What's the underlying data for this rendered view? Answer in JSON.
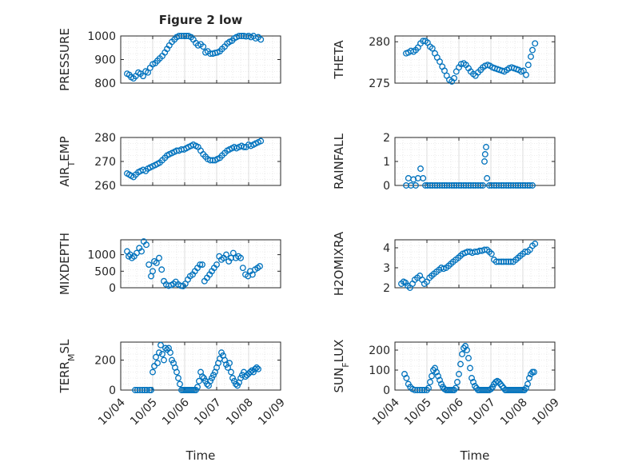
{
  "figure": {
    "title": "Figure 2 low",
    "time_label": "Time",
    "time_ticks": [
      "10/04",
      "10/05",
      "10/06",
      "10/07",
      "10/08",
      "10/09"
    ]
  },
  "colors": {
    "marker": "#0072BD",
    "axis": "#262626",
    "grid": "#d9d9d9"
  },
  "chart_data": [
    {
      "type": "scatter",
      "ylabel": "PRESSURE",
      "ylim": [
        800,
        1000
      ],
      "yticks": [
        800,
        900,
        1000
      ],
      "xlim": [
        0,
        5
      ],
      "grid": true,
      "x": [
        0.2,
        0.27,
        0.33,
        0.4,
        0.47,
        0.55,
        0.62,
        0.7,
        0.78,
        0.85,
        0.92,
        1.0,
        1.08,
        1.15,
        1.22,
        1.3,
        1.38,
        1.45,
        1.52,
        1.6,
        1.68,
        1.75,
        1.82,
        1.9,
        1.98,
        2.05,
        2.12,
        2.2,
        2.27,
        2.35,
        2.42,
        2.5,
        2.58,
        2.65,
        2.72,
        2.8,
        2.88,
        2.95,
        3.02,
        3.1,
        3.17,
        3.25,
        3.33,
        3.4,
        3.48,
        3.55,
        3.62,
        3.7,
        3.78,
        3.85,
        3.92,
        4.0,
        4.07,
        4.15,
        4.22,
        4.3,
        4.38
      ],
      "y": [
        840,
        835,
        825,
        820,
        830,
        845,
        840,
        830,
        850,
        845,
        865,
        880,
        885,
        895,
        905,
        915,
        930,
        945,
        960,
        975,
        985,
        995,
        1000,
        1000,
        1000,
        1000,
        1000,
        995,
        985,
        970,
        960,
        965,
        955,
        930,
        935,
        925,
        925,
        928,
        930,
        935,
        945,
        955,
        968,
        975,
        980,
        990,
        995,
        1000,
        1000,
        1000,
        998,
        1000,
        995,
        1000,
        990,
        995,
        985
      ]
    },
    {
      "type": "scatter",
      "ylabel": "THETA",
      "ylim": [
        275,
        280.7
      ],
      "yticks": [
        275,
        280
      ],
      "xlim": [
        0,
        5
      ],
      "grid": true,
      "x": [
        0.35,
        0.42,
        0.5,
        0.58,
        0.65,
        0.72,
        0.8,
        0.88,
        0.95,
        1.02,
        1.1,
        1.17,
        1.25,
        1.32,
        1.4,
        1.48,
        1.55,
        1.62,
        1.7,
        1.78,
        1.85,
        1.92,
        2.0,
        2.07,
        2.15,
        2.22,
        2.3,
        2.37,
        2.45,
        2.52,
        2.6,
        2.68,
        2.75,
        2.82,
        2.9,
        2.97,
        3.05,
        3.12,
        3.2,
        3.27,
        3.35,
        3.42,
        3.5,
        3.57,
        3.65,
        3.72,
        3.8,
        3.87,
        3.95,
        4.02,
        4.1,
        4.17,
        4.25,
        4.3,
        4.38
      ],
      "y": [
        278.6,
        278.7,
        278.9,
        278.8,
        279.0,
        279.3,
        279.8,
        280.1,
        280.1,
        279.9,
        279.4,
        279.2,
        278.6,
        278.1,
        277.6,
        277.0,
        276.5,
        275.9,
        275.4,
        275.2,
        275.6,
        276.4,
        276.9,
        277.3,
        277.4,
        277.2,
        276.8,
        276.4,
        276.1,
        275.9,
        276.3,
        276.6,
        276.9,
        277.1,
        277.2,
        277.1,
        276.9,
        276.8,
        276.7,
        276.6,
        276.5,
        276.4,
        276.6,
        276.8,
        276.9,
        276.8,
        276.7,
        276.6,
        276.4,
        276.5,
        276.0,
        277.2,
        278.2,
        279.0,
        279.8
      ]
    },
    {
      "type": "scatter",
      "ylabel": "AIR_TEMP",
      "ylim": [
        260,
        280
      ],
      "yticks": [
        260,
        270,
        280
      ],
      "xlim": [
        0,
        5
      ],
      "grid": true,
      "x": [
        0.2,
        0.27,
        0.33,
        0.4,
        0.47,
        0.55,
        0.62,
        0.7,
        0.78,
        0.85,
        0.92,
        1.0,
        1.08,
        1.15,
        1.22,
        1.3,
        1.38,
        1.45,
        1.52,
        1.6,
        1.68,
        1.75,
        1.82,
        1.9,
        1.98,
        2.05,
        2.12,
        2.2,
        2.27,
        2.35,
        2.42,
        2.5,
        2.58,
        2.65,
        2.72,
        2.8,
        2.88,
        2.95,
        3.02,
        3.1,
        3.17,
        3.25,
        3.33,
        3.4,
        3.48,
        3.55,
        3.62,
        3.7,
        3.78,
        3.85,
        3.92,
        4.0,
        4.07,
        4.15,
        4.22,
        4.3,
        4.38
      ],
      "y": [
        265,
        264.5,
        264,
        263.5,
        264.5,
        265.5,
        266,
        266.5,
        266,
        267,
        267.5,
        268,
        268.5,
        269,
        269.5,
        270.5,
        271.5,
        272.5,
        273,
        273.5,
        274,
        274.5,
        274.5,
        275,
        275,
        275.5,
        276,
        276.5,
        277,
        276.5,
        276,
        274.5,
        273,
        272,
        271,
        270.5,
        270.5,
        270.5,
        271,
        271.5,
        272.5,
        273.5,
        274.5,
        275,
        275.5,
        276,
        275.5,
        276,
        276.5,
        276,
        276,
        277,
        276.5,
        277,
        277.5,
        278,
        278.5
      ]
    },
    {
      "type": "scatter",
      "ylabel": "RAINFALL",
      "ylim": [
        0,
        2
      ],
      "yticks": [
        0,
        1,
        2
      ],
      "xlim": [
        0,
        5
      ],
      "grid": true,
      "x": [
        0.35,
        0.42,
        0.5,
        0.58,
        0.65,
        0.72,
        0.8,
        0.88,
        0.95,
        1.02,
        1.1,
        1.17,
        1.25,
        1.32,
        1.4,
        1.48,
        1.55,
        1.62,
        1.7,
        1.78,
        1.85,
        1.92,
        2.0,
        2.07,
        2.15,
        2.22,
        2.3,
        2.37,
        2.45,
        2.52,
        2.6,
        2.68,
        2.75,
        2.8,
        2.82,
        2.85,
        2.88,
        2.95,
        3.02,
        3.1,
        3.17,
        3.25,
        3.33,
        3.4,
        3.48,
        3.55,
        3.62,
        3.7,
        3.78,
        3.85,
        3.92,
        4.0,
        4.07,
        4.15,
        4.22,
        4.3
      ],
      "y": [
        0,
        0.3,
        0,
        0.25,
        0,
        0.3,
        0.7,
        0.3,
        0,
        0,
        0,
        0,
        0,
        0,
        0,
        0,
        0,
        0,
        0,
        0,
        0,
        0,
        0,
        0,
        0,
        0,
        0,
        0,
        0,
        0,
        0,
        0,
        0,
        1.0,
        1.3,
        1.6,
        0.3,
        0,
        0,
        0,
        0,
        0,
        0,
        0,
        0,
        0,
        0,
        0,
        0,
        0,
        0,
        0,
        0,
        0,
        0,
        0
      ]
    },
    {
      "type": "scatter",
      "ylabel": "MIXDEPTH",
      "ylim": [
        0,
        1450
      ],
      "yticks": [
        0,
        500,
        1000
      ],
      "xlim": [
        0,
        5
      ],
      "grid": true,
      "x": [
        0.2,
        0.25,
        0.3,
        0.35,
        0.42,
        0.5,
        0.58,
        0.65,
        0.72,
        0.8,
        0.88,
        0.95,
        1.0,
        1.05,
        1.12,
        1.2,
        1.28,
        1.35,
        1.42,
        1.5,
        1.58,
        1.65,
        1.72,
        1.8,
        1.88,
        1.95,
        2.02,
        2.1,
        2.17,
        2.25,
        2.32,
        2.4,
        2.48,
        2.55,
        2.62,
        2.7,
        2.78,
        2.85,
        2.92,
        3.0,
        3.08,
        3.15,
        3.22,
        3.3,
        3.38,
        3.45,
        3.52,
        3.6,
        3.68,
        3.75,
        3.82,
        3.9,
        3.98,
        4.05,
        4.12,
        4.2,
        4.28,
        4.35
      ],
      "y": [
        1100,
        950,
        1000,
        900,
        950,
        1050,
        1200,
        1100,
        1400,
        1300,
        700,
        350,
        500,
        800,
        750,
        900,
        550,
        200,
        100,
        60,
        80,
        120,
        180,
        100,
        60,
        50,
        120,
        250,
        350,
        400,
        500,
        600,
        700,
        700,
        200,
        300,
        400,
        500,
        600,
        700,
        950,
        850,
        900,
        1000,
        800,
        900,
        1050,
        900,
        950,
        900,
        600,
        400,
        350,
        500,
        400,
        550,
        600,
        650
      ]
    },
    {
      "type": "scatter",
      "ylabel": "H2OMIXRA",
      "ylim": [
        2,
        4.4
      ],
      "yticks": [
        2,
        3,
        4
      ],
      "xlim": [
        0,
        5
      ],
      "grid": true,
      "x": [
        0.2,
        0.27,
        0.33,
        0.4,
        0.47,
        0.55,
        0.62,
        0.7,
        0.78,
        0.85,
        0.92,
        1.0,
        1.08,
        1.15,
        1.22,
        1.3,
        1.38,
        1.45,
        1.52,
        1.6,
        1.68,
        1.75,
        1.82,
        1.9,
        1.98,
        2.05,
        2.12,
        2.2,
        2.27,
        2.35,
        2.42,
        2.5,
        2.58,
        2.65,
        2.72,
        2.8,
        2.88,
        2.95,
        3.02,
        3.1,
        3.17,
        3.25,
        3.33,
        3.4,
        3.48,
        3.55,
        3.62,
        3.7,
        3.78,
        3.85,
        3.92,
        4.0,
        4.07,
        4.15,
        4.22,
        4.3,
        4.38
      ],
      "y": [
        2.2,
        2.3,
        2.25,
        2.1,
        2.0,
        2.2,
        2.4,
        2.5,
        2.6,
        2.4,
        2.2,
        2.3,
        2.5,
        2.6,
        2.7,
        2.8,
        2.9,
        3.0,
        2.95,
        3.0,
        3.1,
        3.2,
        3.3,
        3.4,
        3.5,
        3.6,
        3.7,
        3.75,
        3.8,
        3.8,
        3.75,
        3.8,
        3.8,
        3.85,
        3.85,
        3.9,
        3.9,
        3.8,
        3.7,
        3.4,
        3.3,
        3.3,
        3.3,
        3.3,
        3.3,
        3.3,
        3.3,
        3.3,
        3.4,
        3.5,
        3.6,
        3.7,
        3.8,
        3.8,
        3.9,
        4.1,
        4.2
      ]
    },
    {
      "type": "scatter",
      "ylabel": "TERR_MSL",
      "ylim": [
        0,
        320
      ],
      "yticks": [
        0,
        200
      ],
      "xlim": [
        0,
        5
      ],
      "grid": true,
      "x": [
        0.45,
        0.52,
        0.6,
        0.68,
        0.75,
        0.82,
        0.9,
        0.95,
        1.0,
        1.05,
        1.1,
        1.15,
        1.2,
        1.25,
        1.3,
        1.35,
        1.4,
        1.45,
        1.5,
        1.55,
        1.6,
        1.65,
        1.7,
        1.75,
        1.8,
        1.85,
        1.9,
        1.95,
        2.0,
        2.05,
        2.1,
        2.15,
        2.2,
        2.25,
        2.3,
        2.35,
        2.4,
        2.45,
        2.5,
        2.55,
        2.6,
        2.65,
        2.7,
        2.75,
        2.8,
        2.85,
        2.9,
        2.95,
        3.0,
        3.05,
        3.1,
        3.15,
        3.2,
        3.25,
        3.3,
        3.35,
        3.4,
        3.45,
        3.5,
        3.55,
        3.6,
        3.65,
        3.7,
        3.75,
        3.8,
        3.85,
        3.9,
        3.95,
        4.0,
        4.05,
        4.1,
        4.15,
        4.2,
        4.25,
        4.3
      ],
      "y": [
        0,
        0,
        0,
        0,
        0,
        0,
        0,
        0,
        120,
        160,
        220,
        180,
        250,
        300,
        240,
        200,
        280,
        270,
        280,
        250,
        200,
        180,
        150,
        120,
        80,
        40,
        0,
        0,
        0,
        0,
        0,
        0,
        0,
        0,
        0,
        0,
        20,
        60,
        120,
        90,
        80,
        60,
        40,
        30,
        60,
        80,
        100,
        120,
        150,
        180,
        210,
        250,
        230,
        200,
        170,
        150,
        180,
        120,
        80,
        60,
        40,
        30,
        50,
        80,
        100,
        120,
        90,
        100,
        110,
        120,
        130,
        120,
        140,
        150,
        140
      ]
    },
    {
      "type": "scatter",
      "ylabel": "SUN_FLUX",
      "ylim": [
        0,
        240
      ],
      "yticks": [
        0,
        100,
        200
      ],
      "xlim": [
        0,
        5
      ],
      "grid": true,
      "x": [
        0.3,
        0.36,
        0.42,
        0.48,
        0.55,
        0.62,
        0.7,
        0.78,
        0.85,
        0.92,
        1.0,
        1.05,
        1.1,
        1.15,
        1.2,
        1.25,
        1.3,
        1.35,
        1.4,
        1.45,
        1.5,
        1.55,
        1.6,
        1.65,
        1.7,
        1.75,
        1.8,
        1.85,
        1.9,
        1.95,
        2.0,
        2.05,
        2.1,
        2.15,
        2.2,
        2.25,
        2.3,
        2.35,
        2.4,
        2.45,
        2.5,
        2.55,
        2.6,
        2.65,
        2.7,
        2.75,
        2.8,
        2.85,
        2.9,
        2.95,
        3.0,
        3.05,
        3.1,
        3.15,
        3.2,
        3.25,
        3.3,
        3.35,
        3.4,
        3.45,
        3.5,
        3.55,
        3.6,
        3.65,
        3.7,
        3.75,
        3.8,
        3.85,
        3.9,
        3.95,
        4.0,
        4.05,
        4.1,
        4.15,
        4.2,
        4.25,
        4.3,
        4.35
      ],
      "y": [
        80,
        60,
        30,
        15,
        5,
        0,
        0,
        0,
        0,
        0,
        0,
        10,
        40,
        70,
        100,
        110,
        90,
        70,
        50,
        30,
        15,
        5,
        0,
        0,
        0,
        0,
        0,
        0,
        10,
        40,
        80,
        130,
        180,
        210,
        220,
        200,
        160,
        110,
        60,
        40,
        20,
        10,
        0,
        0,
        0,
        0,
        0,
        0,
        0,
        0,
        5,
        15,
        30,
        40,
        45,
        40,
        30,
        20,
        10,
        0,
        0,
        0,
        0,
        0,
        0,
        0,
        0,
        0,
        0,
        0,
        0,
        0,
        10,
        30,
        60,
        80,
        90,
        90
      ]
    }
  ]
}
